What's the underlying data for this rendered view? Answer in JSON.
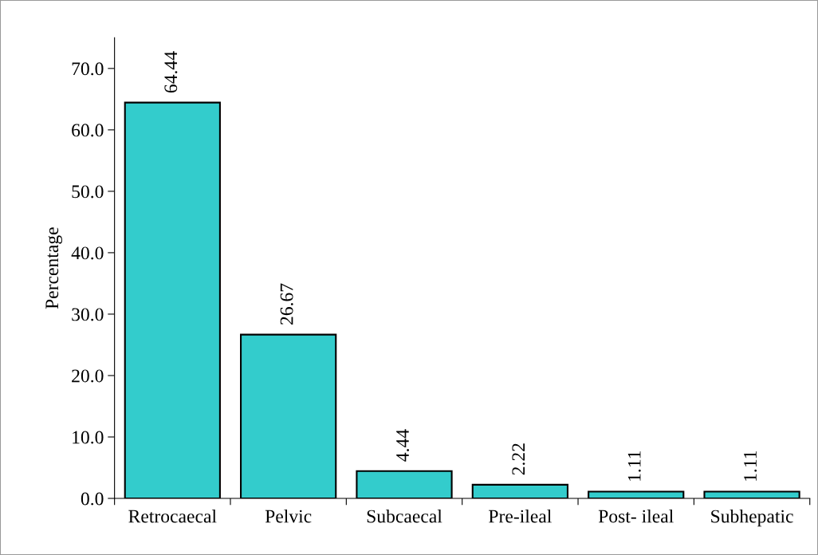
{
  "chart_data": {
    "type": "bar",
    "ylabel": "Percentage",
    "categories": [
      "Retrocaecal",
      "Pelvic",
      "Subcaecal",
      "Pre-ileal",
      "Post- ileal",
      "Subhepatic"
    ],
    "values": [
      64.44,
      26.67,
      4.44,
      2.22,
      1.11,
      1.11
    ],
    "color": "#33cccc",
    "ylim": [
      0,
      75
    ],
    "yticks": [
      {
        "value": 0,
        "label": "0.0"
      },
      {
        "value": 10,
        "label": "10.0"
      },
      {
        "value": 20,
        "label": "20.0"
      },
      {
        "value": 30,
        "label": "30.0"
      },
      {
        "value": 40,
        "label": "40.0"
      },
      {
        "value": 50,
        "label": "50.0"
      },
      {
        "value": 60,
        "label": "60.0"
      },
      {
        "value": 70,
        "label": "70.0"
      }
    ],
    "data_labels": true,
    "grid": false,
    "legend": false
  }
}
